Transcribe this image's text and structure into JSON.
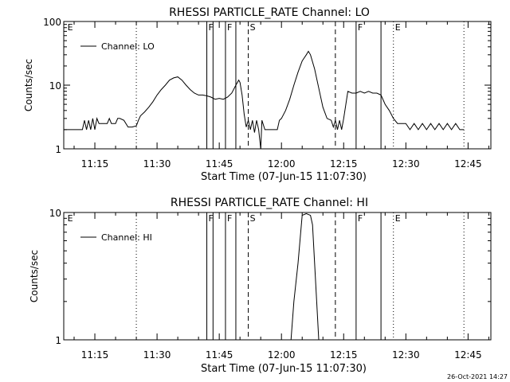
{
  "timestamp": "26-Oct-2021 14:27",
  "chart_data": [
    {
      "type": "line",
      "title": "RHESSI PARTICLE_RATE Channel: LO",
      "xlabel": "Start Time (07-Jun-15 11:07:30)",
      "ylabel": "Counts/sec",
      "yscale": "log",
      "ylim": [
        1,
        100
      ],
      "xlim_minutes_of_day": [
        667.5,
        770.5
      ],
      "y_tick_labels": [
        "1",
        "10",
        "100"
      ],
      "x_tick_labels": [
        "11:15",
        "11:30",
        "11:45",
        "12:00",
        "12:15",
        "12:30",
        "12:45"
      ],
      "legend": "Channel: LO",
      "legend_position": "top-left",
      "grid": false,
      "markers": [
        {
          "label": "E",
          "time": "11:08",
          "style": "none"
        },
        {
          "label": "",
          "time": "11:25",
          "style": "dotted"
        },
        {
          "label": "F",
          "time": "11:42",
          "style": "solid"
        },
        {
          "label": "",
          "time": "11:43.5",
          "style": "solid"
        },
        {
          "label": "F",
          "time": "11:46.5",
          "style": "solid"
        },
        {
          "label": "",
          "time": "11:49",
          "style": "solid"
        },
        {
          "label": "S",
          "time": "11:52",
          "style": "dashed"
        },
        {
          "label": "",
          "time": "12:13",
          "style": "dashed"
        },
        {
          "label": "F",
          "time": "12:18",
          "style": "solid"
        },
        {
          "label": "",
          "time": "12:24",
          "style": "solid"
        },
        {
          "label": "E",
          "time": "12:27",
          "style": "dotted"
        },
        {
          "label": "",
          "time": "12:44",
          "style": "dotted"
        }
      ],
      "series": [
        {
          "name": "Channel: LO",
          "points": [
            [
              "11:07:30",
              2.0
            ],
            [
              "11:12",
              2.0
            ],
            [
              "11:12.5",
              2.8
            ],
            [
              "11:13",
              2.0
            ],
            [
              "11:13.5",
              2.8
            ],
            [
              "11:14",
              2.0
            ],
            [
              "11:14.5",
              3.0
            ],
            [
              "11:15",
              2.0
            ],
            [
              "11:15.5",
              3.0
            ],
            [
              "11:16",
              2.5
            ],
            [
              "11:18",
              2.5
            ],
            [
              "11:18.5",
              3.0
            ],
            [
              "11:19",
              2.5
            ],
            [
              "11:20",
              2.5
            ],
            [
              "11:20.5",
              3.0
            ],
            [
              "11:21",
              3.0
            ],
            [
              "11:22",
              2.8
            ],
            [
              "11:23",
              2.2
            ],
            [
              "11:24",
              2.2
            ],
            [
              "11:25",
              2.3
            ],
            [
              "11:25.5",
              2.8
            ],
            [
              "11:26",
              3.3
            ],
            [
              "11:27",
              3.8
            ],
            [
              "11:28",
              4.5
            ],
            [
              "11:29",
              5.5
            ],
            [
              "11:30",
              7.0
            ],
            [
              "11:31",
              8.5
            ],
            [
              "11:32",
              10.0
            ],
            [
              "11:33",
              12.0
            ],
            [
              "11:34",
              13.0
            ],
            [
              "11:35",
              13.5
            ],
            [
              "11:36",
              12.0
            ],
            [
              "11:37",
              10.0
            ],
            [
              "11:38",
              8.5
            ],
            [
              "11:39",
              7.5
            ],
            [
              "11:40",
              7.0
            ],
            [
              "11:41",
              7.0
            ],
            [
              "11:42",
              6.8
            ],
            [
              "11:43",
              6.5
            ],
            [
              "11:44",
              6.0
            ],
            [
              "11:45",
              6.2
            ],
            [
              "11:46",
              6.0
            ],
            [
              "11:47",
              6.5
            ],
            [
              "11:48",
              7.5
            ],
            [
              "11:49",
              10.0
            ],
            [
              "11:49.7",
              12.0
            ],
            [
              "11:50",
              11.0
            ],
            [
              "11:50.5",
              7.0
            ],
            [
              "11:51",
              3.5
            ],
            [
              "11:51.5",
              2.2
            ],
            [
              "11:52",
              2.8
            ],
            [
              "11:52.5",
              2.0
            ],
            [
              "11:53",
              2.8
            ],
            [
              "11:53.5",
              1.8
            ],
            [
              "11:54",
              2.8
            ],
            [
              "11:54.5",
              2.0
            ],
            [
              "11:55",
              1.0
            ],
            [
              "11:55.3",
              2.8
            ],
            [
              "11:56",
              2.0
            ],
            [
              "11:57",
              2.0
            ],
            [
              "11:58",
              2.0
            ],
            [
              "11:59",
              2.0
            ],
            [
              "11:59.5",
              2.8
            ],
            [
              "12:00",
              3.0
            ],
            [
              "12:01",
              4.0
            ],
            [
              "12:02",
              6.0
            ],
            [
              "12:03",
              10.0
            ],
            [
              "12:04",
              16.0
            ],
            [
              "12:05",
              24.0
            ],
            [
              "12:06",
              30.0
            ],
            [
              "12:06.5",
              34.0
            ],
            [
              "12:07",
              30.0
            ],
            [
              "12:08",
              18.0
            ],
            [
              "12:09",
              9.0
            ],
            [
              "12:10",
              4.5
            ],
            [
              "12:11",
              3.0
            ],
            [
              "12:12",
              2.8
            ],
            [
              "12:12.5",
              2.2
            ],
            [
              "12:13",
              2.8
            ],
            [
              "12:13.5",
              2.0
            ],
            [
              "12:14",
              2.8
            ],
            [
              "12:14.5",
              2.0
            ],
            [
              "12:15",
              3.0
            ],
            [
              "12:16",
              8.0
            ],
            [
              "12:17",
              7.5
            ],
            [
              "12:18",
              7.5
            ],
            [
              "12:19",
              8.0
            ],
            [
              "12:20",
              7.5
            ],
            [
              "12:21",
              8.0
            ],
            [
              "12:22",
              7.5
            ],
            [
              "12:23",
              7.5
            ],
            [
              "12:24",
              7.0
            ],
            [
              "12:25",
              5.0
            ],
            [
              "12:26",
              4.0
            ],
            [
              "12:27",
              3.0
            ],
            [
              "12:28",
              2.5
            ],
            [
              "12:30",
              2.5
            ],
            [
              "12:31",
              2.0
            ],
            [
              "12:32",
              2.5
            ],
            [
              "12:33",
              2.0
            ],
            [
              "12:34",
              2.5
            ],
            [
              "12:35",
              2.0
            ],
            [
              "12:36",
              2.5
            ],
            [
              "12:37",
              2.0
            ],
            [
              "12:38",
              2.5
            ],
            [
              "12:39",
              2.0
            ],
            [
              "12:40",
              2.5
            ],
            [
              "12:41",
              2.0
            ],
            [
              "12:42",
              2.5
            ],
            [
              "12:43",
              2.0
            ],
            [
              "12:44",
              2.0
            ]
          ]
        }
      ]
    },
    {
      "type": "line",
      "title": "RHESSI PARTICLE_RATE Channel: HI",
      "xlabel": "Start Time (07-Jun-15 11:07:30)",
      "ylabel": "Counts/sec",
      "yscale": "log",
      "ylim": [
        1,
        10
      ],
      "xlim_minutes_of_day": [
        667.5,
        770.5
      ],
      "y_tick_labels": [
        "1",
        "10"
      ],
      "x_tick_labels": [
        "11:15",
        "11:30",
        "11:45",
        "12:00",
        "12:15",
        "12:30",
        "12:45"
      ],
      "legend": "Channel: HI",
      "legend_position": "top-left",
      "grid": false,
      "markers": [
        {
          "label": "E",
          "time": "11:08",
          "style": "none"
        },
        {
          "label": "",
          "time": "11:25",
          "style": "dotted"
        },
        {
          "label": "F",
          "time": "11:42",
          "style": "solid"
        },
        {
          "label": "",
          "time": "11:43.5",
          "style": "solid"
        },
        {
          "label": "F",
          "time": "11:46.5",
          "style": "solid"
        },
        {
          "label": "",
          "time": "11:49",
          "style": "solid"
        },
        {
          "label": "S",
          "time": "11:52",
          "style": "dashed"
        },
        {
          "label": "",
          "time": "12:13",
          "style": "dashed"
        },
        {
          "label": "F",
          "time": "12:18",
          "style": "solid"
        },
        {
          "label": "",
          "time": "12:24",
          "style": "solid"
        },
        {
          "label": "E",
          "time": "12:27",
          "style": "dotted"
        },
        {
          "label": "",
          "time": "12:44",
          "style": "dotted"
        }
      ],
      "series": [
        {
          "name": "Channel: HI",
          "points": [
            [
              "12:02.3",
              1.0
            ],
            [
              "12:03",
              2.0
            ],
            [
              "12:04",
              4.0
            ],
            [
              "12:05",
              9.5
            ],
            [
              "12:06",
              9.8
            ],
            [
              "12:07",
              9.5
            ],
            [
              "12:07.5",
              8.0
            ],
            [
              "12:08",
              4.0
            ],
            [
              "12:08.5",
              2.0
            ],
            [
              "12:09",
              1.0
            ]
          ]
        }
      ]
    }
  ]
}
